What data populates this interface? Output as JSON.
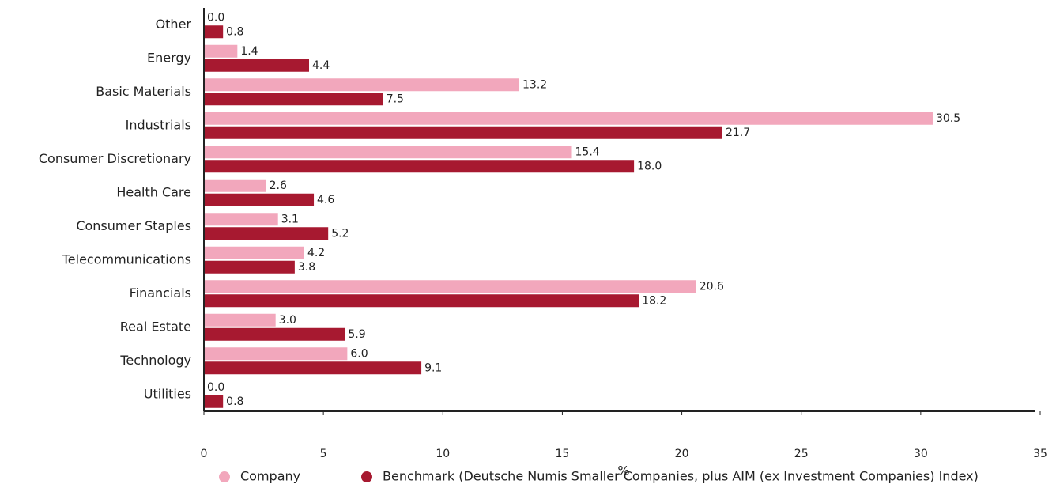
{
  "chart_data": {
    "type": "bar",
    "orientation": "horizontal",
    "x_label": "%",
    "categories": [
      "Other",
      "Energy",
      "Basic Materials",
      "Industrials",
      "Consumer Discretionary",
      "Health Care",
      "Consumer Staples",
      "Telecommunications",
      "Financials",
      "Real Estate",
      "Technology",
      "Utilities"
    ],
    "series": [
      {
        "name": "Company",
        "color": "#f2a7bc",
        "values": [
          0,
          1.4,
          13.2,
          30.5,
          15.4,
          2.6,
          3.1,
          4.2,
          20.6,
          3,
          6,
          0
        ],
        "value_labels": [
          "0.0",
          "1.4",
          "13.2",
          "30.5",
          "15.4",
          "2.6",
          "3.1",
          "4.2",
          "20.6",
          "3.0",
          "6.0",
          "0.0"
        ]
      },
      {
        "name": "Benchmark (Deutsche Numis Smaller Companies, plus AIM (ex Investment Companies) Index)",
        "color": "#a71930",
        "values": [
          0.8,
          4.4,
          7.5,
          21.7,
          18,
          4.6,
          5.2,
          3.8,
          18.2,
          5.9,
          9.1,
          0.8
        ],
        "value_labels": [
          "0.8",
          "4.4",
          "7.5",
          "21.7",
          "18.0",
          "4.6",
          "5.2",
          "3.8",
          "18.2",
          "5.9",
          "9.1",
          "0.8"
        ]
      }
    ],
    "xlim": [
      0,
      35
    ],
    "xticks": [
      0,
      5,
      10,
      15,
      20,
      25,
      30,
      35
    ],
    "grid": false
  }
}
